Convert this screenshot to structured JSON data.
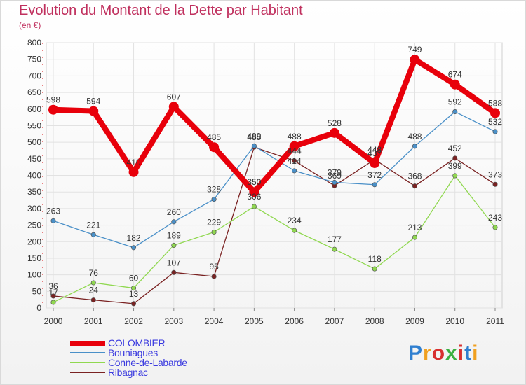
{
  "title": "Evolution du Montant de la Dette par Habitant",
  "unit": "(en €)",
  "logo": {
    "text": "Proxiti",
    "letter_colors": [
      "#2f7fd0",
      "#f0a020",
      "#d83030",
      "#3ab040",
      "#d83030",
      "#2f7fd0",
      "#f0a020"
    ]
  },
  "chart_data": {
    "type": "line",
    "x": [
      "2000",
      "2001",
      "2002",
      "2003",
      "2004",
      "2005",
      "2006",
      "2007",
      "2008",
      "2009",
      "2010",
      "2011"
    ],
    "ylim": [
      0,
      800
    ],
    "yticks": [
      "0",
      "50",
      "100",
      "150",
      "200",
      "250",
      "300",
      "350",
      "400",
      "450",
      "500",
      "550",
      "600",
      "650",
      "700",
      "750",
      "800"
    ],
    "grid": true,
    "legend_position": "bottom-left",
    "series": [
      {
        "name": "COLOMBIER",
        "color": "#e8000b",
        "values": [
          598,
          594,
          410,
          607,
          485,
          350,
          488,
          528,
          437,
          749,
          674,
          588
        ],
        "labels": [
          "598",
          "594",
          "410",
          "607",
          "485",
          "350",
          "488",
          "528",
          "437",
          "749",
          "674",
          "588"
        ]
      },
      {
        "name": "Bouniagues",
        "color": "#4a90c8",
        "values": [
          263,
          221,
          182,
          260,
          328,
          489,
          414,
          379,
          372,
          488,
          592,
          532
        ],
        "labels": [
          "263",
          "221",
          "182",
          "260",
          "328",
          "489",
          "414",
          "379",
          "372",
          "488",
          "592",
          "532"
        ]
      },
      {
        "name": "Conne-de-Labarde",
        "color": "#90d850",
        "values": [
          17,
          76,
          60,
          189,
          229,
          306,
          234,
          177,
          118,
          213,
          399,
          243
        ],
        "labels": [
          "17",
          "76",
          "60",
          "189",
          "229",
          "306",
          "234",
          "177",
          "118",
          "213",
          "399",
          "243"
        ]
      },
      {
        "name": "Ribagnac",
        "color": "#7a2222",
        "values": [
          36,
          24,
          13,
          107,
          95,
          485,
          444,
          369,
          448,
          368,
          452,
          373
        ],
        "labels": [
          "36",
          "24",
          "13",
          "107",
          "95",
          "485",
          "444",
          "369",
          "448",
          "368",
          "452",
          "373"
        ]
      }
    ]
  }
}
